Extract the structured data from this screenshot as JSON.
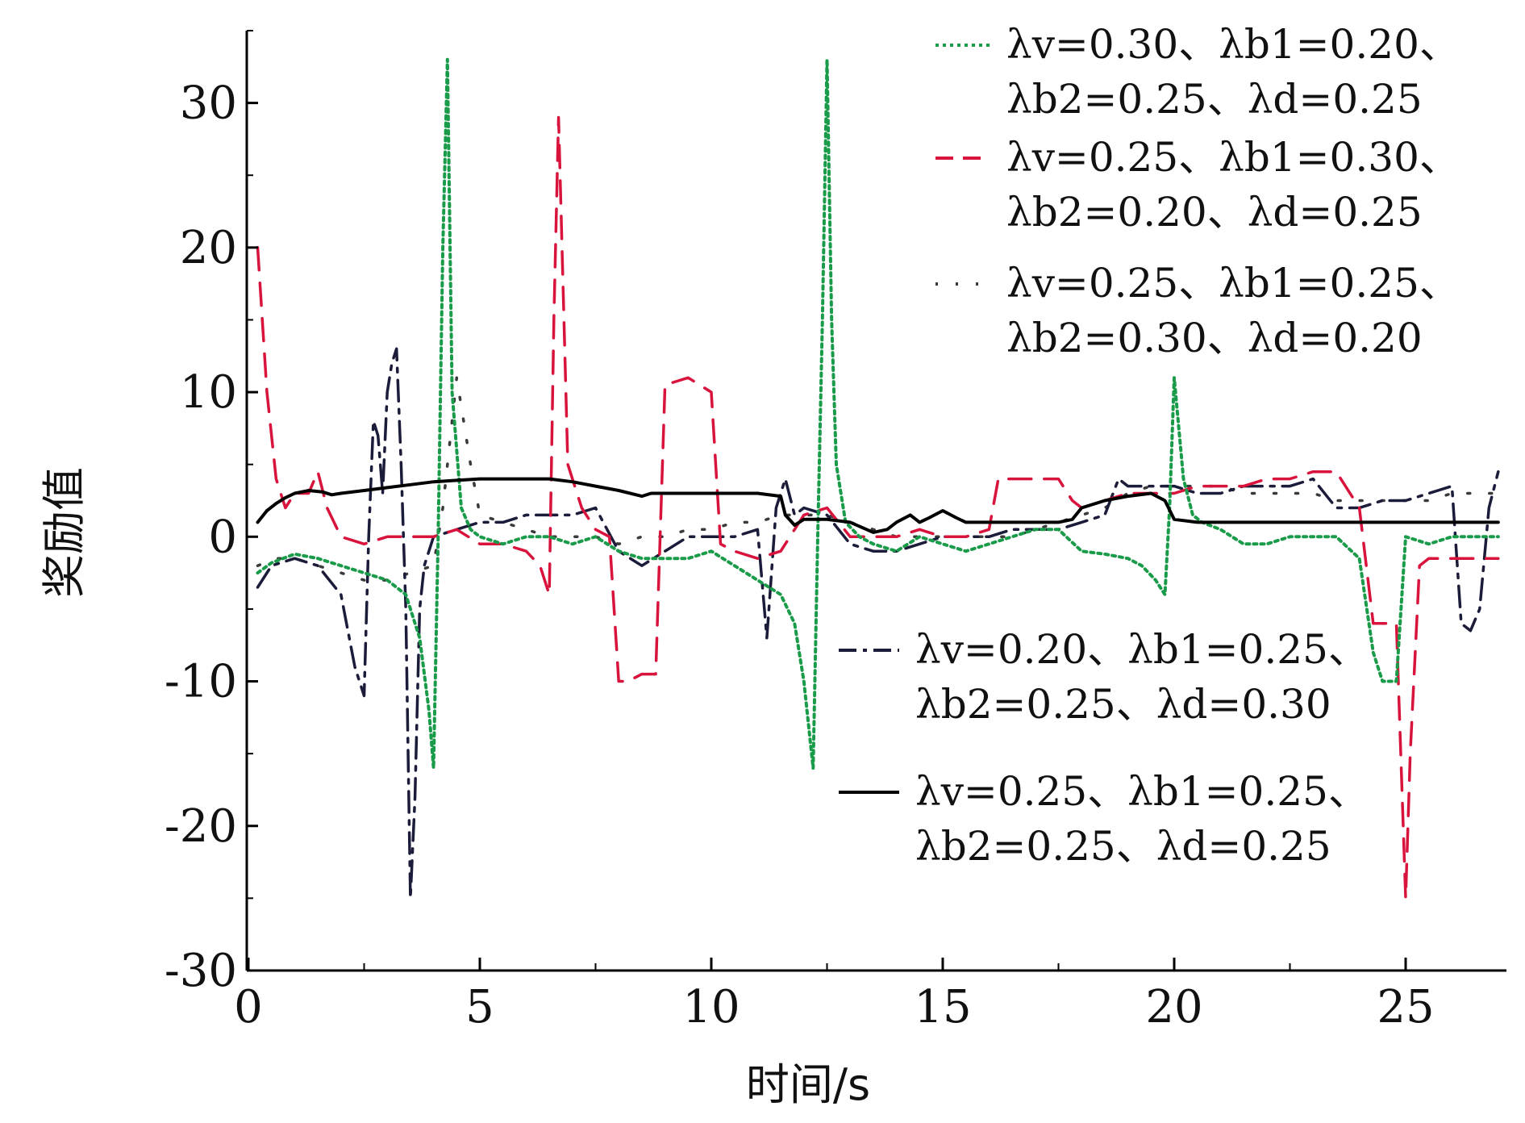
{
  "chart_data": {
    "type": "line",
    "title": "",
    "xlabel": "时间/s",
    "ylabel": "奖励值",
    "xlim": [
      0,
      27.5
    ],
    "ylim": [
      -30,
      35
    ],
    "xticks": [
      0,
      5,
      10,
      15,
      20,
      25
    ],
    "yticks": [
      -30,
      -20,
      -10,
      0,
      10,
      20,
      30
    ],
    "xtick_labels": [
      "0",
      "5",
      "10",
      "15",
      "20",
      "25"
    ],
    "ytick_labels": [
      "-30",
      "-20",
      "-10",
      "0",
      "10",
      "20",
      "30"
    ],
    "grid": false,
    "legend": [
      {
        "series": 0,
        "line1": "λv=0.30、λb1=0.20、",
        "line2": "λb2=0.25、λd=0.25",
        "placement": "top-right"
      },
      {
        "series": 1,
        "line1": "λv=0.25、λb1=0.30、",
        "line2": "λb2=0.20、λd=0.25",
        "placement": "top-right"
      },
      {
        "series": 2,
        "line1": "λv=0.25、λb1=0.25、",
        "line2": "λb2=0.30、λd=0.20",
        "placement": "top-right"
      },
      {
        "series": 3,
        "line1": "λv=0.20、λb1=0.25、",
        "line2": "λb2=0.25、λd=0.30",
        "placement": "lower-right"
      },
      {
        "series": 4,
        "line1": "λv=0.25、λb1=0.25、",
        "line2": "λb2=0.25、λd=0.25",
        "placement": "lower-right"
      }
    ],
    "series": [
      {
        "color": "#1a9b4a",
        "dash": "dotted",
        "x": [
          0.2,
          0.5,
          1.0,
          1.5,
          2.0,
          2.5,
          3.0,
          3.4,
          3.7,
          3.9,
          4.0,
          4.1,
          4.2,
          4.3,
          4.4,
          4.6,
          4.8,
          5.0,
          5.5,
          6.0,
          6.5,
          7.0,
          7.5,
          8.0,
          8.5,
          9.0,
          9.5,
          10.0,
          10.5,
          11.0,
          11.5,
          11.8,
          12.0,
          12.2,
          12.3,
          12.4,
          12.5,
          12.6,
          12.7,
          12.9,
          13.2,
          13.5,
          14.0,
          14.5,
          15.0,
          15.5,
          16.0,
          16.5,
          17.0,
          17.5,
          18.0,
          18.5,
          19.0,
          19.3,
          19.6,
          19.8,
          19.9,
          20.0,
          20.2,
          20.4,
          20.6,
          21.0,
          21.5,
          22.0,
          22.5,
          23.0,
          23.5,
          24.0,
          24.3,
          24.5,
          24.8,
          25.0,
          25.5,
          26.0,
          26.5,
          27.0
        ],
        "values": [
          -2.5,
          -1.8,
          -1.2,
          -1.5,
          -2.0,
          -2.5,
          -3.0,
          -4.0,
          -7.0,
          -12.0,
          -16.0,
          0.0,
          20.0,
          33.0,
          10.0,
          2.0,
          0.5,
          0.0,
          -0.5,
          0.0,
          0.0,
          -0.5,
          0.0,
          -1.0,
          -1.5,
          -1.5,
          -1.5,
          -1.0,
          -2.0,
          -3.0,
          -4.0,
          -6.0,
          -10.0,
          -16.0,
          0.0,
          15.0,
          33.0,
          15.0,
          5.0,
          1.0,
          0.0,
          -0.5,
          -1.0,
          0.0,
          -0.5,
          -1.0,
          -0.5,
          0.0,
          0.5,
          0.5,
          -1.0,
          -1.2,
          -1.5,
          -2.0,
          -3.0,
          -4.0,
          2.0,
          11.0,
          4.0,
          1.5,
          1.0,
          0.5,
          -0.5,
          -0.5,
          0.0,
          0.0,
          0.0,
          -1.5,
          -8.0,
          -10.0,
          -10.0,
          0.0,
          -0.5,
          0.0,
          0.0,
          0.0
        ]
      },
      {
        "color": "#d8143c",
        "dash": "dashed",
        "x": [
          0.2,
          0.4,
          0.6,
          0.8,
          1.0,
          1.3,
          1.5,
          1.7,
          2.0,
          2.5,
          3.0,
          3.5,
          4.0,
          4.5,
          5.0,
          5.5,
          6.0,
          6.3,
          6.5,
          6.6,
          6.7,
          6.9,
          7.2,
          7.5,
          7.8,
          8.0,
          8.2,
          8.5,
          8.8,
          9.0,
          9.5,
          10.0,
          10.2,
          10.5,
          11.0,
          11.5,
          12.0,
          12.5,
          13.0,
          13.5,
          14.0,
          14.5,
          15.0,
          15.5,
          16.0,
          16.2,
          16.5,
          17.0,
          17.5,
          17.8,
          18.0,
          18.5,
          19.0,
          19.5,
          20.0,
          20.5,
          21.0,
          21.5,
          22.0,
          22.5,
          23.0,
          23.5,
          24.0,
          24.3,
          24.6,
          24.8,
          25.0,
          25.1,
          25.3,
          25.5,
          26.0,
          26.5,
          27.0
        ],
        "values": [
          20.0,
          10.0,
          4.0,
          2.0,
          3.0,
          3.0,
          4.5,
          2.0,
          0.0,
          -0.5,
          0.0,
          0.0,
          0.0,
          0.5,
          -0.5,
          -0.5,
          -1.0,
          -2.0,
          -4.0,
          15.0,
          29.0,
          5.0,
          2.0,
          0.5,
          0.0,
          -10.0,
          -10.0,
          -9.5,
          -9.5,
          10.5,
          11.0,
          10.0,
          -0.5,
          -1.0,
          -1.5,
          -1.0,
          1.5,
          2.0,
          0.0,
          0.0,
          0.0,
          0.5,
          0.0,
          0.0,
          0.5,
          4.0,
          4.0,
          4.0,
          4.0,
          2.5,
          2.0,
          2.5,
          3.0,
          3.0,
          3.0,
          3.5,
          3.5,
          3.5,
          4.0,
          4.0,
          4.5,
          4.5,
          2.0,
          -6.0,
          -6.0,
          -6.0,
          -25.0,
          -15.0,
          -2.0,
          -1.5,
          -1.5,
          -1.5,
          -1.5
        ]
      },
      {
        "color": "#3a3a3a",
        "dash": "sparse-dots",
        "x": [
          0.2,
          0.6,
          1.0,
          1.5,
          2.0,
          2.5,
          3.0,
          3.5,
          4.0,
          4.2,
          4.5,
          4.8,
          5.0,
          5.5,
          6.0,
          6.5,
          7.0,
          7.5,
          8.0,
          8.5,
          9.0,
          9.5,
          10.0,
          10.5,
          11.0,
          11.5,
          12.0,
          12.5,
          13.0,
          13.5,
          14.0,
          14.5,
          15.0,
          15.5,
          16.0,
          16.5,
          17.0,
          17.5,
          18.0,
          18.5,
          19.0,
          19.5,
          20.0,
          20.5,
          21.0,
          21.5,
          22.0,
          22.5,
          23.0,
          23.5,
          24.0,
          24.5,
          25.0,
          25.5,
          26.0,
          26.5,
          27.0
        ],
        "values": [
          -2.0,
          -1.5,
          -1.5,
          -2.0,
          -2.5,
          -3.0,
          -3.0,
          -2.5,
          -2.0,
          2.0,
          11.0,
          5.0,
          1.5,
          1.0,
          0.5,
          0.0,
          0.0,
          0.0,
          -0.5,
          0.0,
          0.0,
          0.5,
          0.5,
          1.0,
          1.0,
          1.5,
          1.5,
          1.5,
          1.0,
          0.5,
          0.0,
          0.0,
          0.0,
          0.0,
          0.0,
          0.0,
          0.5,
          1.0,
          1.5,
          2.0,
          3.0,
          3.5,
          3.5,
          3.5,
          3.5,
          3.0,
          3.0,
          3.0,
          3.0,
          2.5,
          2.5,
          2.5,
          2.5,
          2.5,
          3.0,
          3.0,
          3.0
        ]
      },
      {
        "color": "#1b1b3a",
        "dash": "dash-dot",
        "x": [
          0.2,
          0.5,
          1.0,
          1.5,
          2.0,
          2.3,
          2.5,
          2.6,
          2.7,
          2.8,
          2.9,
          3.0,
          3.1,
          3.2,
          3.3,
          3.4,
          3.5,
          3.6,
          3.7,
          3.8,
          4.0,
          4.5,
          5.0,
          5.5,
          6.0,
          6.5,
          7.0,
          7.5,
          8.0,
          8.5,
          9.0,
          9.5,
          10.0,
          10.5,
          11.0,
          11.2,
          11.4,
          11.6,
          11.8,
          12.0,
          12.5,
          13.0,
          13.5,
          14.0,
          14.5,
          15.0,
          15.5,
          16.0,
          16.5,
          17.0,
          17.5,
          18.0,
          18.5,
          18.8,
          19.0,
          19.5,
          20.0,
          20.5,
          21.0,
          21.5,
          22.0,
          22.5,
          23.0,
          23.5,
          24.0,
          24.5,
          25.0,
          25.5,
          26.0,
          26.2,
          26.4,
          26.6,
          26.8,
          27.0
        ],
        "values": [
          -3.5,
          -2.0,
          -1.5,
          -2.0,
          -4.0,
          -9.0,
          -11.0,
          0.0,
          8.0,
          7.0,
          3.0,
          10.0,
          12.0,
          13.0,
          5.0,
          -5.0,
          -25.0,
          -18.0,
          -5.0,
          -2.0,
          0.0,
          0.5,
          1.0,
          1.0,
          1.5,
          1.5,
          1.5,
          2.0,
          -1.0,
          -2.0,
          -1.0,
          0.0,
          0.0,
          0.0,
          0.5,
          -7.0,
          2.0,
          4.0,
          1.5,
          2.0,
          1.5,
          -0.5,
          -1.0,
          -1.0,
          -0.5,
          0.0,
          0.0,
          0.0,
          0.5,
          0.5,
          0.5,
          1.0,
          1.5,
          4.0,
          3.5,
          3.5,
          3.5,
          3.0,
          3.0,
          3.5,
          3.5,
          3.5,
          4.0,
          2.0,
          2.0,
          2.5,
          2.5,
          3.0,
          3.5,
          -6.0,
          -6.5,
          -5.0,
          2.0,
          4.5
        ]
      },
      {
        "color": "#000000",
        "dash": "solid",
        "x": [
          0.2,
          0.4,
          0.6,
          0.8,
          1.0,
          1.3,
          1.6,
          1.8,
          2.0,
          2.5,
          3.0,
          3.5,
          4.0,
          4.5,
          5.0,
          5.5,
          6.0,
          6.5,
          7.0,
          7.5,
          8.0,
          8.5,
          8.7,
          9.0,
          9.5,
          10.0,
          10.5,
          11.0,
          11.5,
          11.6,
          11.8,
          12.0,
          12.5,
          13.0,
          13.5,
          13.8,
          14.0,
          14.3,
          14.5,
          14.7,
          15.0,
          15.3,
          15.5,
          16.0,
          16.5,
          17.0,
          17.5,
          17.8,
          18.0,
          18.5,
          19.0,
          19.5,
          19.8,
          20.0,
          20.5,
          21.0,
          22.0,
          23.0,
          24.0,
          25.0,
          26.0,
          27.0
        ],
        "values": [
          1.0,
          1.8,
          2.3,
          2.7,
          3.0,
          3.2,
          3.1,
          2.9,
          3.0,
          3.2,
          3.4,
          3.6,
          3.8,
          3.9,
          4.0,
          4.0,
          4.0,
          4.0,
          3.8,
          3.5,
          3.2,
          2.8,
          3.0,
          3.0,
          3.0,
          3.0,
          3.0,
          3.0,
          2.8,
          1.5,
          0.8,
          1.2,
          1.2,
          1.0,
          0.3,
          0.5,
          1.0,
          1.5,
          1.0,
          1.3,
          1.8,
          1.3,
          1.0,
          1.0,
          1.0,
          1.0,
          1.0,
          1.2,
          2.0,
          2.5,
          2.8,
          3.0,
          2.5,
          1.2,
          1.0,
          1.0,
          1.0,
          1.0,
          1.0,
          1.0,
          1.0,
          1.0
        ]
      }
    ]
  }
}
